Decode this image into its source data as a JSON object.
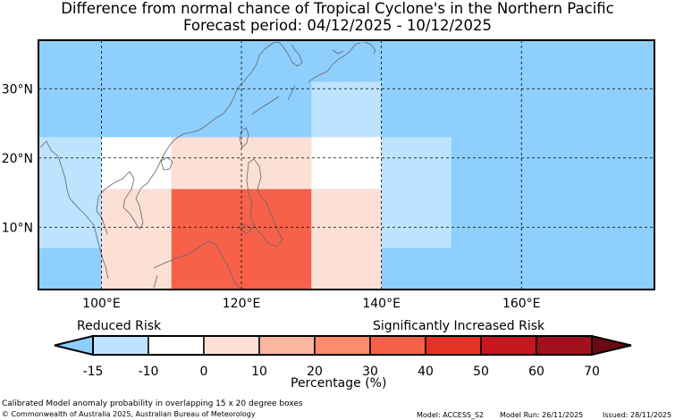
{
  "title": "Difference from normal chance of Tropical Cyclone's in the Northern Pacific",
  "subtitle": "Forecast period: 04/12/2025 - 10/12/2025",
  "map": {
    "lon_range": [
      91,
      179
    ],
    "lat_range": [
      1,
      37
    ],
    "lon_ticks": [
      "100°E",
      "120°E",
      "140°E",
      "160°E"
    ],
    "lat_ticks": [
      "30°N",
      "20°N",
      "10°N"
    ],
    "background_color": "#8ecffe",
    "cells": [
      {
        "lon": [
          91,
          100
        ],
        "lat": [
          7,
          23
        ],
        "category": "-15 to -10"
      },
      {
        "lon": [
          100,
          110
        ],
        "lat": [
          15.5,
          23
        ],
        "category": "-10 to 0"
      },
      {
        "lon": [
          110,
          130
        ],
        "lat": [
          15.5,
          23
        ],
        "category": "0 to 10"
      },
      {
        "lon": [
          130,
          140
        ],
        "lat": [
          15.5,
          23
        ],
        "category": "-10 to 0"
      },
      {
        "lon": [
          130,
          140
        ],
        "lat": [
          23,
          31
        ],
        "category": "-15 to -10"
      },
      {
        "lon": [
          140,
          150
        ],
        "lat": [
          7,
          23
        ],
        "category": "-15 to -10"
      },
      {
        "lon": [
          100,
          110
        ],
        "lat": [
          1,
          15.5
        ],
        "category": "0 to 10"
      },
      {
        "lon": [
          110,
          130
        ],
        "lat": [
          1,
          15.5
        ],
        "category": "30 to 40"
      },
      {
        "lon": [
          130,
          140
        ],
        "lat": [
          1,
          15.5
        ],
        "category": "0 to 10"
      }
    ]
  },
  "colorbar": {
    "left_label": "Reduced Risk",
    "right_label": "Significantly Increased Risk",
    "axis_label": "Percentage (%)",
    "ticks": [
      "-15",
      "-10",
      "0",
      "10",
      "20",
      "30",
      "40",
      "50",
      "60",
      "70"
    ],
    "under_color": "#8ecffe",
    "over_color": "#6b0a14",
    "colors": [
      "#bde3fe",
      "#ffffff",
      "#fde0d5",
      "#fbb79f",
      "#fb8c6d",
      "#f76149",
      "#e53227",
      "#c5171c",
      "#a0111b"
    ]
  },
  "footer": {
    "line1": "Calibrated Model anomaly probability in overlapping 15 x 20 degree boxes",
    "line2": "© Commonwealth of Australia 2025, Australian Bureau of Meteorology",
    "model": "Model: ACCESS_S2",
    "run": "Model Run: 26/11/2025",
    "issued": "Issued: 28/11/2025"
  }
}
